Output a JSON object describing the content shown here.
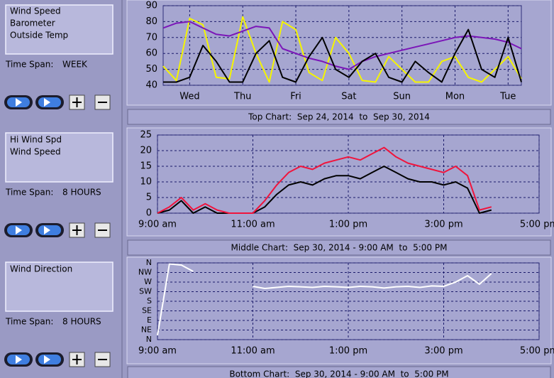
{
  "panels": [
    {
      "label": "Time Span:",
      "value": "WEEK"
    },
    {
      "label": "Time Span:",
      "value": "8 HOURS"
    },
    {
      "label": "Time Span:",
      "value": "8 HOURS"
    }
  ],
  "chart_data": [
    {
      "type": "line",
      "title": "Top Chart:  Sep 24, 2014  to  Sep 30, 2014",
      "categories": [
        null,
        null,
        "Wed",
        null,
        null,
        null,
        "Thu",
        null,
        null,
        null,
        "Fri",
        null,
        null,
        null,
        "Sat",
        null,
        null,
        null,
        "Sun",
        null,
        null,
        null,
        "Mon",
        null,
        null,
        null,
        "Tue",
        null
      ],
      "series": [
        {
          "name": "Wind Speed",
          "color": "#000000",
          "values": [
            42,
            42,
            45,
            65,
            55,
            42,
            42,
            60,
            68,
            45,
            42,
            58,
            70,
            50,
            45,
            55,
            60,
            45,
            42,
            55,
            48,
            42,
            60,
            75,
            50,
            45,
            70,
            42
          ]
        },
        {
          "name": "Barometer",
          "color": "#7b16b8",
          "values": [
            76,
            79,
            80,
            76,
            72,
            71,
            74,
            77,
            76,
            63,
            60,
            57,
            55,
            52,
            50,
            55,
            58,
            60,
            62,
            64,
            66,
            68,
            70,
            71,
            70,
            69,
            67,
            63
          ]
        },
        {
          "name": "Outside Temp",
          "color": "#f5f500",
          "values": [
            52,
            43,
            82,
            78,
            45,
            44,
            83,
            60,
            42,
            80,
            75,
            48,
            43,
            70,
            60,
            43,
            42,
            58,
            50,
            42,
            42,
            55,
            58,
            45,
            42,
            50,
            58,
            44
          ]
        }
      ],
      "ylim": [
        40,
        90
      ],
      "yticks": [
        40,
        50,
        60,
        70,
        80,
        90
      ],
      "grid": true
    },
    {
      "type": "line",
      "title": "Middle Chart:  Sep 30, 2014 - 9:00 AM  to  5:00 PM",
      "categories": [
        "9:00 am",
        null,
        null,
        null,
        null,
        null,
        null,
        null,
        "11:00 am",
        null,
        null,
        null,
        null,
        null,
        null,
        null,
        "1:00 pm",
        null,
        null,
        null,
        null,
        null,
        null,
        null,
        "3:00 pm",
        null,
        null,
        null,
        null,
        null,
        null,
        null,
        "5:00 pm"
      ],
      "series": [
        {
          "name": "Hi Wind Spd",
          "color": "#f0143c",
          "values": [
            0,
            2,
            5,
            1,
            3,
            1,
            0,
            0,
            0,
            4,
            9,
            13,
            15,
            14,
            16,
            17,
            18,
            17,
            19,
            21,
            18,
            16,
            15,
            14,
            13,
            15,
            12,
            1,
            2,
            null,
            null,
            null,
            null
          ]
        },
        {
          "name": "Wind Speed",
          "color": "#000000",
          "values": [
            0,
            1,
            4,
            0,
            2,
            0,
            0,
            0,
            0,
            2,
            6,
            9,
            10,
            9,
            11,
            12,
            12,
            11,
            13,
            15,
            13,
            11,
            10,
            10,
            9,
            10,
            8,
            0,
            1,
            null,
            null,
            null,
            null
          ]
        }
      ],
      "ylim": [
        0,
        25
      ],
      "yticks": [
        0,
        5,
        10,
        15,
        20,
        25
      ],
      "grid": true
    },
    {
      "type": "line",
      "title": "Bottom Chart:  Sep 30, 2014 - 9:00 AM  to  5:00 PM",
      "categories": [
        "9:00 am",
        null,
        null,
        null,
        null,
        null,
        null,
        null,
        "11:00 am",
        null,
        null,
        null,
        null,
        null,
        null,
        null,
        "1:00 pm",
        null,
        null,
        null,
        null,
        null,
        null,
        null,
        "3:00 pm",
        null,
        null,
        null,
        null,
        null,
        null,
        null,
        "5:00 pm"
      ],
      "series": [
        {
          "name": "Wind Direction",
          "color": "#ffffff",
          "values": [
            20,
            355,
            350,
            320,
            null,
            null,
            null,
            null,
            250,
            240,
            245,
            250,
            248,
            245,
            250,
            248,
            245,
            250,
            248,
            242,
            248,
            250,
            245,
            252,
            250,
            270,
            300,
            260,
            310,
            null,
            null,
            null,
            null
          ]
        }
      ],
      "ylim": [
        0,
        360
      ],
      "yticks": [
        {
          "value": 0,
          "label": "N"
        },
        {
          "value": 45,
          "label": "NE"
        },
        {
          "value": 90,
          "label": "E"
        },
        {
          "value": 135,
          "label": "SE"
        },
        {
          "value": 180,
          "label": "S"
        },
        {
          "value": 225,
          "label": "SW"
        },
        {
          "value": 270,
          "label": "W"
        },
        {
          "value": 315,
          "label": "NW"
        },
        {
          "value": 360,
          "label": "N"
        }
      ],
      "grid": true
    }
  ]
}
